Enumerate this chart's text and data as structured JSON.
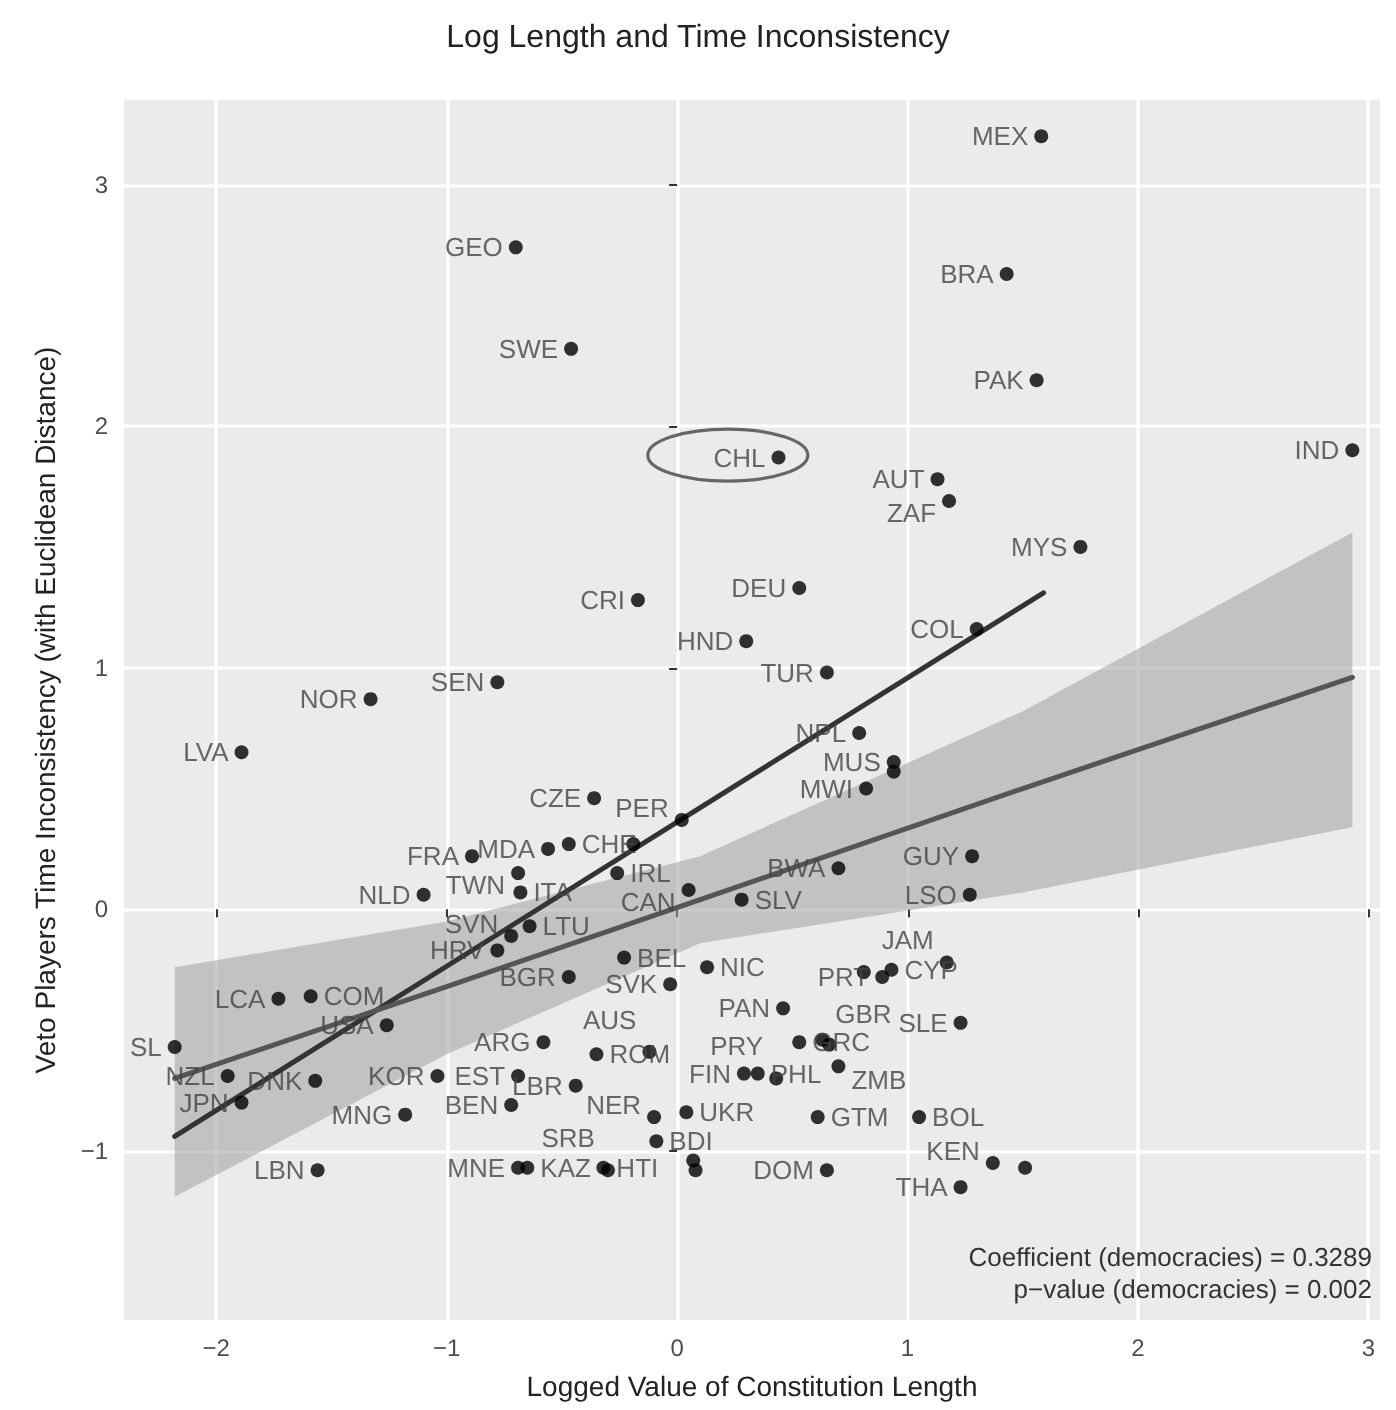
{
  "chart_data": {
    "type": "scatter",
    "title": "Log Length and Time Inconsistency",
    "xlabel": "Logged Value of Constitution Length",
    "ylabel": "Veto Players Time Inconsistency (with Euclidean Distance)",
    "xlim": [
      -2.4,
      3.05
    ],
    "ylim": [
      -1.7,
      3.35
    ],
    "xticks": [
      -2,
      -1,
      0,
      1,
      2,
      3
    ],
    "yticks": [
      -1,
      0,
      1,
      2,
      3
    ],
    "grid": true,
    "annotations": [
      "Coefficient (democracies) = 0.3289",
      "p−value (democracies) = 0.002"
    ],
    "series": [
      {
        "marker": "circle",
        "color": "#000000",
        "x": [
          -2.18,
          -1.95,
          -1.89,
          -1.89,
          -1.73,
          -1.59,
          -1.57,
          -1.56,
          -1.33,
          -1.26,
          -1.18,
          -1.1,
          -1.04,
          -0.89,
          -0.78,
          -0.78,
          -0.72,
          -0.72,
          -0.7,
          -0.69,
          -0.69,
          -0.69,
          -0.68,
          -0.65,
          -0.64,
          -0.58,
          -0.56,
          -0.47,
          -0.47,
          -0.46,
          -0.44,
          -0.36,
          -0.35,
          -0.32,
          -0.3,
          -0.26,
          -0.23,
          -0.19,
          -0.17,
          -0.12,
          -0.1,
          -0.09,
          -0.03,
          0.02,
          0.04,
          0.05,
          0.07,
          0.08,
          0.13,
          0.28,
          0.29,
          0.3,
          0.35,
          0.43,
          0.44,
          0.46,
          0.53,
          0.53,
          0.63,
          0.61,
          0.65,
          0.65,
          0.66,
          0.7,
          0.7,
          0.79,
          0.81,
          0.82,
          0.89,
          0.93,
          0.94,
          0.94,
          1.05,
          1.13,
          1.17,
          1.18,
          1.23,
          1.23,
          1.27,
          1.28,
          1.3,
          1.37,
          1.51,
          1.43,
          1.56,
          1.58,
          1.75,
          2.93
        ],
        "values": [
          -0.57,
          -0.69,
          -0.8,
          0.65,
          -0.37,
          -0.36,
          -0.71,
          -1.08,
          0.87,
          -0.48,
          -0.85,
          0.06,
          -0.69,
          0.22,
          0.94,
          -0.17,
          -0.11,
          -0.81,
          2.74,
          0.15,
          -0.69,
          -1.07,
          0.07,
          -1.07,
          -0.07,
          -0.55,
          0.25,
          0.27,
          -0.28,
          2.32,
          -0.73,
          0.46,
          -0.6,
          -1.07,
          -1.08,
          0.15,
          -0.2,
          0.27,
          1.28,
          -0.59,
          -0.86,
          -0.96,
          -0.31,
          0.37,
          -0.84,
          0.08,
          -1.04,
          -1.08,
          -0.24,
          0.04,
          -0.68,
          1.11,
          -0.68,
          -0.7,
          1.87,
          -0.41,
          1.33,
          -0.55,
          -0.54,
          -0.86,
          0.98,
          -1.08,
          -0.56,
          0.17,
          -0.65,
          0.73,
          -0.26,
          0.5,
          -0.28,
          -0.25,
          0.61,
          0.57,
          -0.86,
          1.78,
          -0.22,
          1.69,
          -0.47,
          -1.15,
          0.06,
          0.22,
          1.16,
          -1.05,
          -1.07,
          2.63,
          2.19,
          3.2,
          1.5,
          1.9
        ],
        "value_labels": [
          "SL",
          "NZL",
          "JPN",
          "LVA",
          "LCA",
          "COM",
          "DNK",
          "LBN",
          "NOR",
          "USA",
          "MNG",
          "NLD",
          "KOR",
          "FRA",
          "SEN",
          "HRV",
          "SVN",
          "BEN",
          "GEO",
          "TWN",
          "EST",
          "MNE",
          "ITA",
          "KAZ",
          "LTU",
          "ARG",
          "MDA",
          "CHE",
          "BGR",
          "SWE",
          "LBR",
          "CZE",
          "ROM",
          "HTI",
          "SRB",
          "IRL",
          "BEL",
          null,
          "CRI",
          "AUS",
          "NER",
          "BDI",
          "SVK",
          "PER",
          "UKR",
          "CAN",
          null,
          null,
          "NIC",
          "SLV",
          "FIN",
          "HND",
          "PHL",
          "PRY",
          "CHL",
          "PAN",
          "DEU",
          "GRC",
          "GBR",
          "GTM",
          "TUR",
          "DOM",
          null,
          "BWA",
          "ZMB",
          "NPL",
          null,
          "MWI",
          "PRT",
          "CYP",
          "MUS",
          null,
          "BOL",
          "AUT",
          "JAM",
          "ZAF",
          "SLE",
          "THA",
          "LSO",
          "GUY",
          "COL",
          "KEN",
          null,
          "BRA",
          "PAK",
          "MEX",
          "MYS",
          "IND"
        ]
      },
      {
        "type": "line",
        "marker": "none",
        "color": "#333333",
        "x": [
          -2.18,
          1.59
        ],
        "values": [
          -0.94,
          1.31
        ]
      },
      {
        "type": "line",
        "marker": "none",
        "color": "#555555",
        "x": [
          -2.18,
          -1,
          0.1,
          1.5,
          2.93
        ],
        "values": [
          -0.7,
          -0.32,
          0.04,
          0.5,
          0.96
        ],
        "lower": [
          -1.19,
          -0.6,
          -0.14,
          0.07,
          0.34
        ],
        "upper": [
          -0.24,
          -0.05,
          0.22,
          0.82,
          1.56
        ]
      }
    ]
  }
}
